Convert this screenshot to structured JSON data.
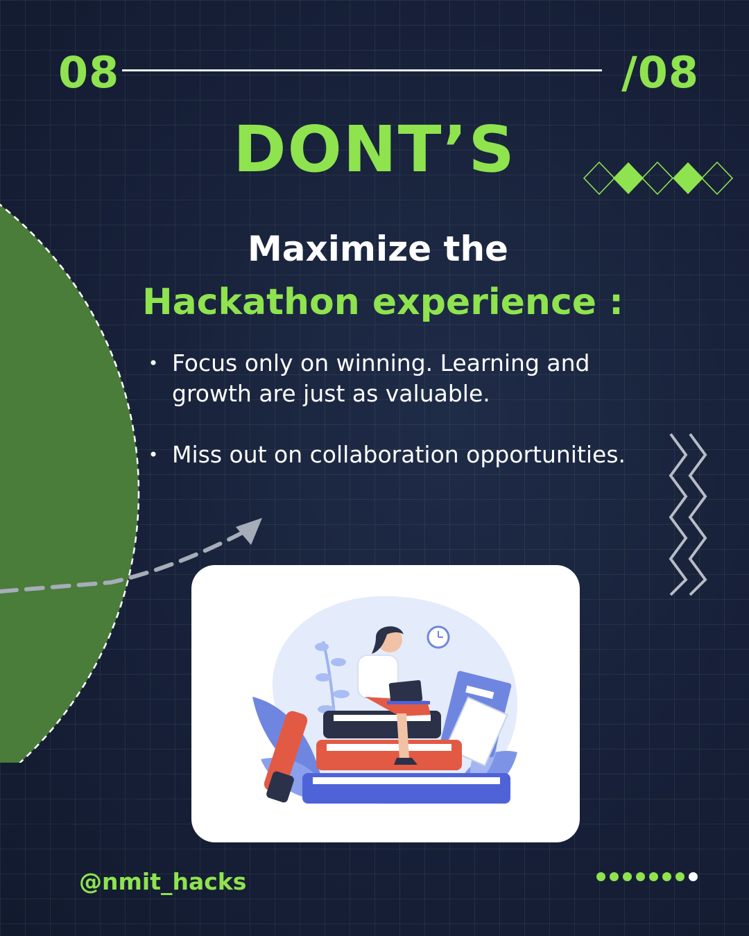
{
  "header": {
    "page_number": "08",
    "page_total": "/08"
  },
  "title": "DONT’S",
  "subtitle": {
    "line1": "Maximize the",
    "line2": "Hackathon experience :"
  },
  "bullets": [
    {
      "marker": "•",
      "text": "Focus only on winning. Learning and growth are just as valuable."
    },
    {
      "marker": "•",
      "text": "Miss out on collaboration opportunities."
    }
  ],
  "footer": {
    "handle": "@nmit_hacks",
    "pagination": {
      "total": 8,
      "active": 8
    }
  },
  "colors": {
    "background": "#16203a",
    "accent_green": "#8fe34f",
    "circle_green": "#4a7c3a",
    "text_white": "#ffffff"
  },
  "icons": [
    "diamond-row-icon",
    "zigzag-icon",
    "dashed-arrow-icon",
    "woman-with-laptop-on-books-illustration"
  ]
}
